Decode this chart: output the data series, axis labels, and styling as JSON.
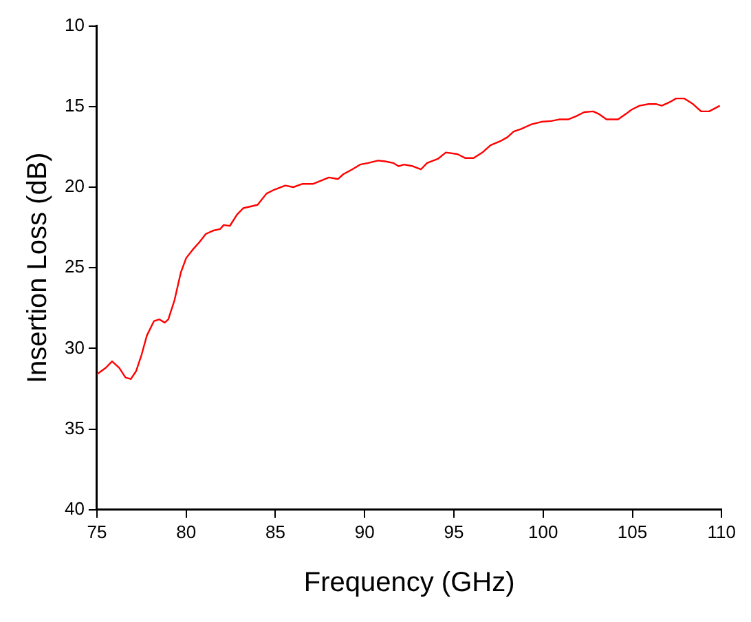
{
  "chart_data": {
    "type": "line",
    "xlabel": "Frequency (GHz)",
    "ylabel": "Insertion Loss (dB)",
    "x": [
      75,
      75.5,
      75.85,
      76.25,
      76.6,
      76.9,
      77.2,
      77.5,
      77.8,
      78.2,
      78.5,
      78.8,
      79.0,
      79.35,
      79.7,
      80.0,
      80.35,
      80.75,
      81.1,
      81.5,
      81.9,
      82.1,
      82.45,
      82.85,
      83.2,
      84.0,
      84.5,
      84.95,
      85.55,
      86.0,
      86.5,
      87.1,
      87.55,
      88.0,
      88.5,
      88.8,
      89.3,
      89.75,
      90.2,
      90.75,
      91.15,
      91.6,
      91.9,
      92.2,
      92.7,
      93.15,
      93.5,
      94.1,
      94.55,
      95.2,
      95.65,
      96.1,
      96.6,
      97.05,
      97.6,
      98.0,
      98.35,
      98.75,
      99.35,
      99.9,
      100.45,
      100.9,
      101.4,
      101.85,
      102.3,
      102.8,
      103.1,
      103.55,
      104.2,
      104.65,
      104.95,
      105.4,
      105.9,
      106.35,
      106.65,
      107.05,
      107.45,
      107.9,
      108.4,
      108.85,
      109.3,
      109.9
    ],
    "series": [
      {
        "color": "#ff0000",
        "values": [
          31.6,
          31.2,
          30.8,
          31.2,
          31.8,
          31.9,
          31.4,
          30.4,
          29.2,
          28.3,
          28.2,
          28.4,
          28.2,
          27.0,
          25.3,
          24.4,
          23.9,
          23.4,
          22.9,
          22.7,
          22.6,
          22.35,
          22.4,
          21.7,
          21.3,
          21.1,
          20.4,
          20.15,
          19.9,
          20.0,
          19.8,
          19.8,
          19.6,
          19.4,
          19.5,
          19.2,
          18.9,
          18.6,
          18.5,
          18.35,
          18.4,
          18.5,
          18.7,
          18.6,
          18.7,
          18.9,
          18.5,
          18.25,
          17.85,
          17.95,
          18.2,
          18.2,
          17.85,
          17.4,
          17.15,
          16.9,
          16.55,
          16.4,
          16.1,
          15.95,
          15.9,
          15.8,
          15.8,
          15.6,
          15.35,
          15.3,
          15.45,
          15.8,
          15.8,
          15.45,
          15.2,
          14.95,
          14.85,
          14.85,
          14.95,
          14.75,
          14.5,
          14.5,
          14.85,
          15.3,
          15.3,
          14.95
        ]
      }
    ],
    "xlim": [
      75,
      110
    ],
    "xticks": [
      75,
      80,
      85,
      90,
      95,
      100,
      105,
      110
    ],
    "ylim": [
      40,
      10
    ],
    "yticks": [
      10,
      15,
      20,
      25,
      30,
      35,
      40
    ],
    "grid": false,
    "legend": false,
    "marker": "none",
    "line_style": "solid"
  }
}
